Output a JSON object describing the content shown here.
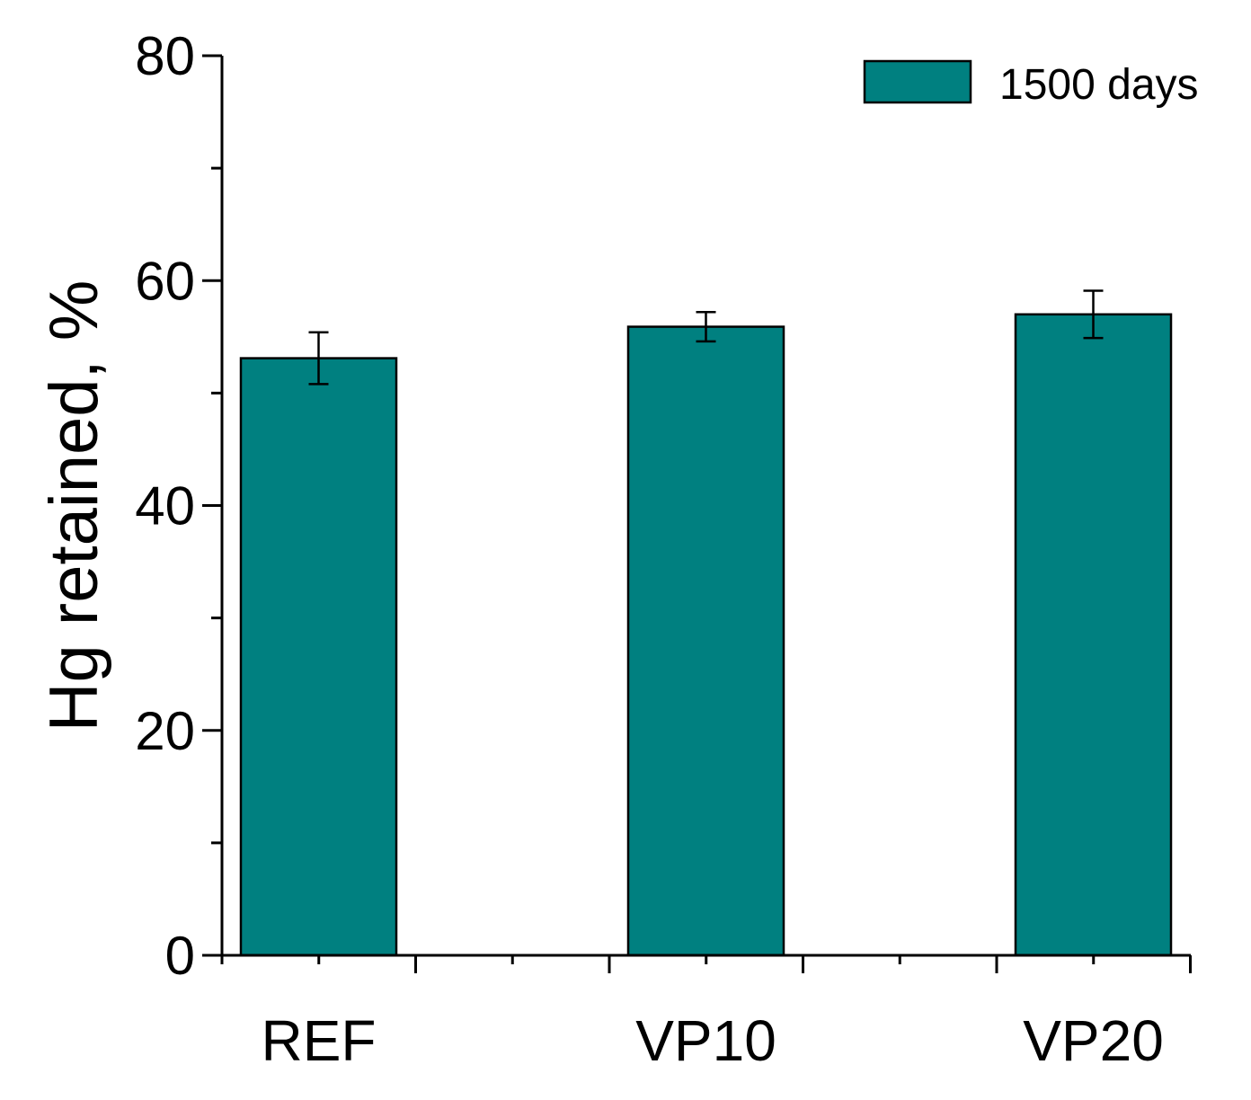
{
  "chart_data": {
    "type": "bar",
    "title": "",
    "xlabel": "",
    "ylabel": "Hg retained, %",
    "categories": [
      "REF",
      "VP10",
      "VP20"
    ],
    "series": [
      {
        "name": "1500 days",
        "values": [
          53.1,
          55.9,
          57.0
        ],
        "errors": [
          2.3,
          1.3,
          2.1
        ]
      }
    ],
    "ylim": [
      0,
      80
    ],
    "yticks_major": [
      "0",
      "20",
      "40",
      "60",
      "80"
    ],
    "ytick_minor_step": 10,
    "legend_position": "top-right",
    "bar_color": "#008080",
    "grid": false
  }
}
